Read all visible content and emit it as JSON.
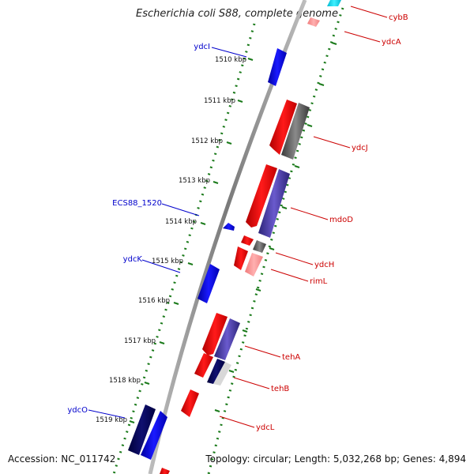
{
  "title": "Escherichia coli S88, complete genome",
  "footer": {
    "accession": "Accession: NC_011742",
    "summary": "Topology: circular; Length: 5,032,268 bp; Genes: 4,894"
  },
  "colors": {
    "backbone": "#8c8c8c",
    "tick": "#1a7a1a",
    "forward_label": "#0000cc",
    "reverse_label": "#cc0000"
  },
  "kbp_ticks": [
    "1510 kbp",
    "1511 kbp",
    "1512 kbp",
    "1513 kbp",
    "1514 kbp",
    "1515 kbp",
    "1516 kbp",
    "1517 kbp",
    "1518 kbp",
    "1519 kbp"
  ],
  "gene_labels_forward": [
    "ydcI",
    "ECS88_1520",
    "ydcK",
    "ydcO"
  ],
  "gene_labels_reverse": [
    "cybB",
    "ydcA",
    "ydcJ",
    "mdoD",
    "ydcH",
    "rimL",
    "tehA",
    "tehB",
    "ydcL"
  ]
}
